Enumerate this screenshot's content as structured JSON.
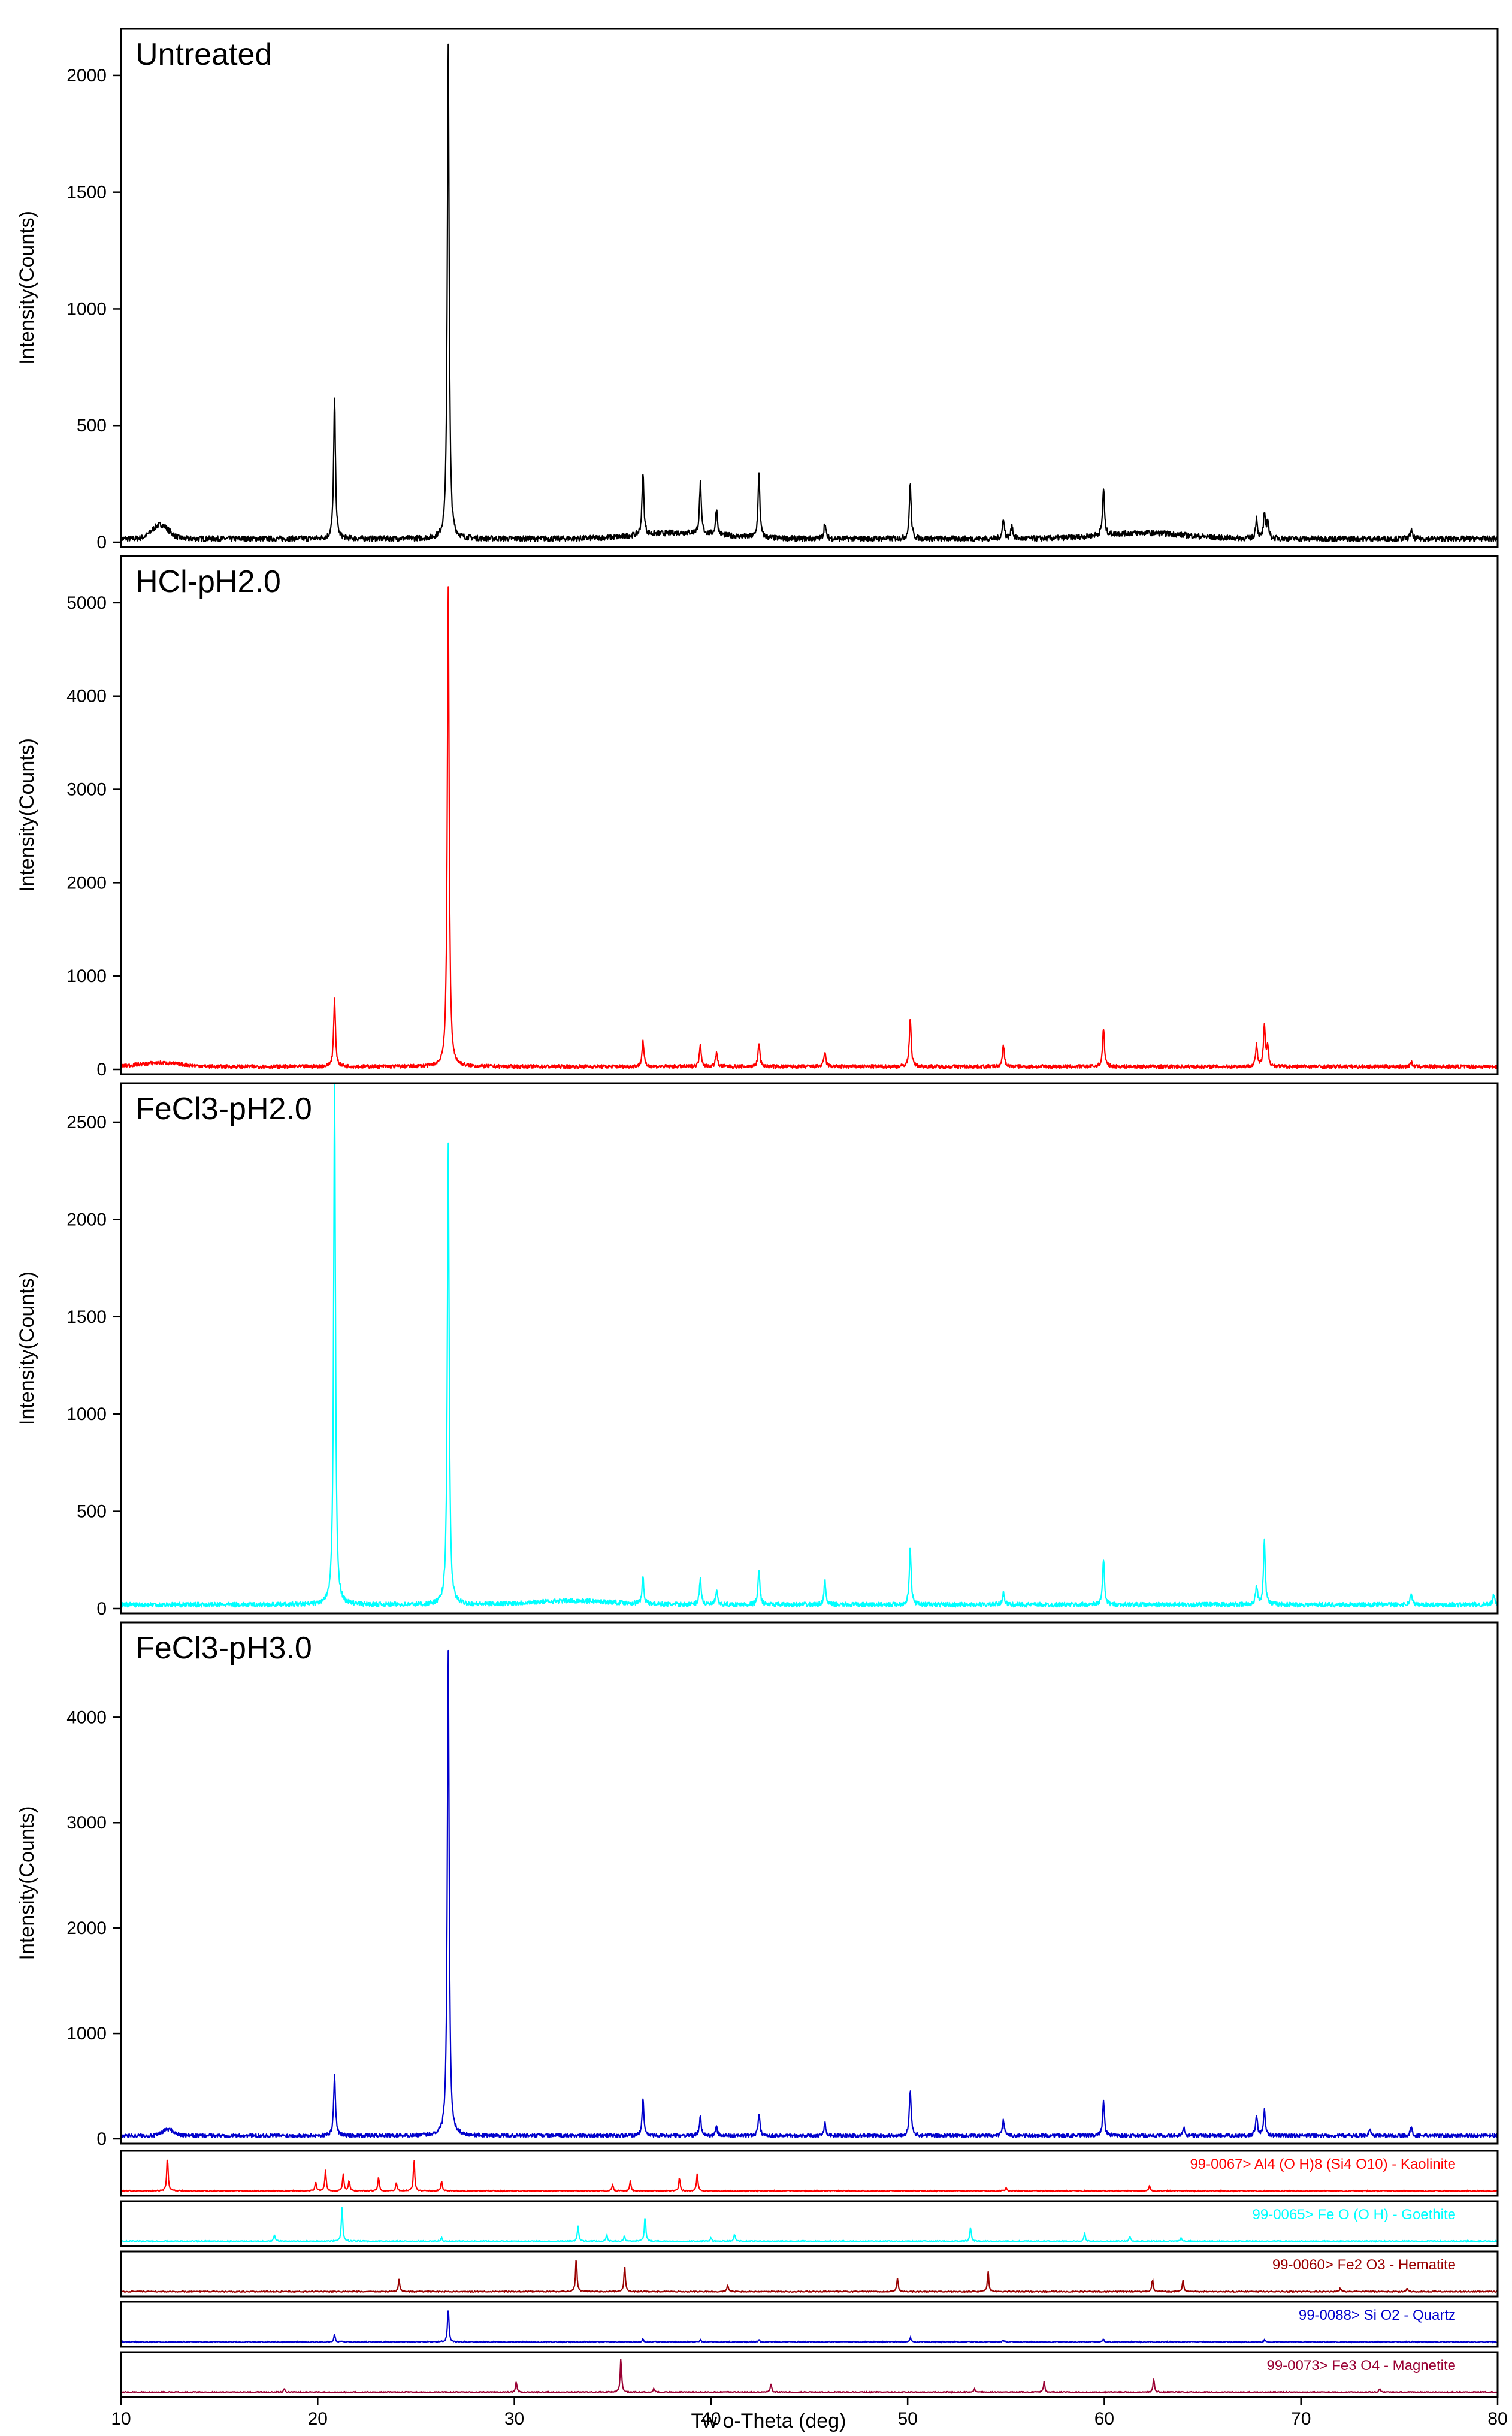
{
  "figure": {
    "x_axis_title": "Tw o-Theta (deg)",
    "y_axis_title": "Intensity(Counts)"
  },
  "chart_data": [
    {
      "type": "line",
      "title": "Untreated",
      "ylabel": "Intensity(Counts)",
      "xlim": [
        10,
        80
      ],
      "ylim": [
        0,
        2200
      ],
      "y_ticks": [
        0,
        500,
        1000,
        1500,
        2000
      ],
      "color": "#000000",
      "background": 15,
      "noise": 12,
      "bumps": [
        [
          12,
          0.6,
          60
        ],
        [
          38.5,
          3,
          25
        ],
        [
          62,
          3,
          25
        ]
      ],
      "peaks": [
        [
          20.86,
          600
        ],
        [
          26.64,
          2120
        ],
        [
          36.54,
          270
        ],
        [
          39.46,
          215
        ],
        [
          40.28,
          110
        ],
        [
          42.44,
          270
        ],
        [
          45.79,
          70
        ],
        [
          50.13,
          235
        ],
        [
          54.87,
          90
        ],
        [
          55.3,
          60
        ],
        [
          59.96,
          200
        ],
        [
          67.74,
          90
        ],
        [
          68.14,
          100
        ],
        [
          68.31,
          80
        ],
        [
          75.6,
          40
        ]
      ]
    },
    {
      "type": "line",
      "title": "HCl-pH2.0",
      "ylabel": "Intensity(Counts)",
      "xlim": [
        10,
        80
      ],
      "ylim": [
        0,
        5500
      ],
      "y_ticks": [
        0,
        1000,
        2000,
        3000,
        4000,
        5000
      ],
      "color": "#ff0000",
      "background": 30,
      "noise": 20,
      "bumps": [
        [
          12,
          1.5,
          40
        ]
      ],
      "peaks": [
        [
          20.86,
          720
        ],
        [
          26.64,
          5150
        ],
        [
          36.54,
          280
        ],
        [
          39.46,
          250
        ],
        [
          40.28,
          150
        ],
        [
          42.44,
          250
        ],
        [
          45.79,
          160
        ],
        [
          50.13,
          530
        ],
        [
          54.87,
          230
        ],
        [
          59.96,
          410
        ],
        [
          67.74,
          230
        ],
        [
          68.14,
          430
        ],
        [
          68.31,
          200
        ],
        [
          75.6,
          50
        ]
      ]
    },
    {
      "type": "line",
      "title": "FeCl3-pH2.0",
      "ylabel": "Intensity(Counts)",
      "xlim": [
        10,
        80
      ],
      "ylim": [
        0,
        2700
      ],
      "y_ticks": [
        0,
        500,
        1000,
        1500,
        2000,
        2500
      ],
      "color": "#00ffff",
      "background": 20,
      "noise": 12,
      "bumps": [
        [
          33,
          3,
          20
        ]
      ],
      "peaks": [
        [
          20.86,
          2680
        ],
        [
          26.64,
          2360
        ],
        [
          36.54,
          140
        ],
        [
          39.46,
          140
        ],
        [
          40.28,
          70
        ],
        [
          42.44,
          180
        ],
        [
          45.79,
          120
        ],
        [
          50.13,
          290
        ],
        [
          54.87,
          70
        ],
        [
          59.96,
          230
        ],
        [
          67.74,
          100
        ],
        [
          68.14,
          330
        ],
        [
          75.6,
          60
        ],
        [
          79.8,
          50
        ]
      ]
    },
    {
      "type": "line",
      "title": "FeCl3-pH3.0",
      "ylabel": "Intensity(Counts)",
      "xlim": [
        10,
        80
      ],
      "ylim": [
        0,
        4900
      ],
      "y_ticks": [
        0,
        1000,
        2000,
        3000,
        4000
      ],
      "color": "#0000cc",
      "background": 30,
      "noise": 18,
      "bumps": [
        [
          12.4,
          0.4,
          60
        ]
      ],
      "peaks": [
        [
          20.86,
          570
        ],
        [
          26.64,
          4620
        ],
        [
          36.54,
          340
        ],
        [
          39.46,
          180
        ],
        [
          40.28,
          80
        ],
        [
          42.44,
          210
        ],
        [
          45.79,
          120
        ],
        [
          50.13,
          430
        ],
        [
          54.87,
          150
        ],
        [
          59.96,
          330
        ],
        [
          64.05,
          70
        ],
        [
          67.74,
          200
        ],
        [
          68.14,
          240
        ],
        [
          73.5,
          60
        ],
        [
          75.6,
          80
        ]
      ]
    },
    {
      "type": "line",
      "title": "99-0067> Al4 (O H)8 (Si4 O10) - Kaolinite",
      "color": "#ff0000",
      "xlim": [
        10,
        80
      ],
      "peaks": [
        [
          12.36,
          1.0
        ],
        [
          19.9,
          0.25
        ],
        [
          20.4,
          0.6
        ],
        [
          21.3,
          0.5
        ],
        [
          21.6,
          0.3
        ],
        [
          23.1,
          0.4
        ],
        [
          24.0,
          0.25
        ],
        [
          24.9,
          0.9
        ],
        [
          26.3,
          0.3
        ],
        [
          35.0,
          0.2
        ],
        [
          35.9,
          0.3
        ],
        [
          38.4,
          0.4
        ],
        [
          39.3,
          0.5
        ],
        [
          55.0,
          0.1
        ],
        [
          62.3,
          0.15
        ]
      ]
    },
    {
      "type": "line",
      "title": "99-0065> Fe O (O H) - Goethite",
      "color": "#00ffff",
      "xlim": [
        10,
        80
      ],
      "peaks": [
        [
          17.8,
          0.2
        ],
        [
          21.24,
          1.0
        ],
        [
          26.3,
          0.1
        ],
        [
          33.24,
          0.45
        ],
        [
          34.7,
          0.2
        ],
        [
          35.6,
          0.15
        ],
        [
          36.65,
          0.75
        ],
        [
          40.0,
          0.1
        ],
        [
          41.2,
          0.2
        ],
        [
          53.2,
          0.4
        ],
        [
          59.0,
          0.25
        ],
        [
          61.3,
          0.15
        ],
        [
          63.9,
          0.1
        ]
      ]
    },
    {
      "type": "line",
      "title": "99-0060> Fe2 O3 - Hematite",
      "color": "#990000",
      "xlim": [
        10,
        80
      ],
      "peaks": [
        [
          24.14,
          0.35
        ],
        [
          33.15,
          1.0
        ],
        [
          35.61,
          0.75
        ],
        [
          40.85,
          0.2
        ],
        [
          49.48,
          0.4
        ],
        [
          54.09,
          0.6
        ],
        [
          62.45,
          0.35
        ],
        [
          64.0,
          0.35
        ],
        [
          72.0,
          0.1
        ],
        [
          75.4,
          0.1
        ]
      ]
    },
    {
      "type": "line",
      "title": "99-0088> Si O2 - Quartz",
      "color": "#0000cc",
      "xlim": [
        10,
        80
      ],
      "peaks": [
        [
          20.86,
          0.22
        ],
        [
          26.64,
          1.0
        ],
        [
          36.54,
          0.08
        ],
        [
          39.46,
          0.07
        ],
        [
          42.44,
          0.06
        ],
        [
          50.14,
          0.12
        ],
        [
          54.87,
          0.05
        ],
        [
          59.96,
          0.08
        ],
        [
          68.14,
          0.06
        ]
      ]
    },
    {
      "type": "line",
      "title": "99-0073> Fe3 O4 - Magnetite",
      "color": "#990033",
      "xlim": [
        10,
        80
      ],
      "peaks": [
        [
          18.3,
          0.1
        ],
        [
          30.1,
          0.3
        ],
        [
          35.42,
          1.0
        ],
        [
          37.1,
          0.1
        ],
        [
          43.05,
          0.25
        ],
        [
          53.4,
          0.1
        ],
        [
          56.94,
          0.3
        ],
        [
          62.51,
          0.4
        ],
        [
          74.0,
          0.1
        ]
      ]
    }
  ],
  "x_ticks": [
    10,
    20,
    30,
    40,
    50,
    60,
    70,
    80
  ]
}
